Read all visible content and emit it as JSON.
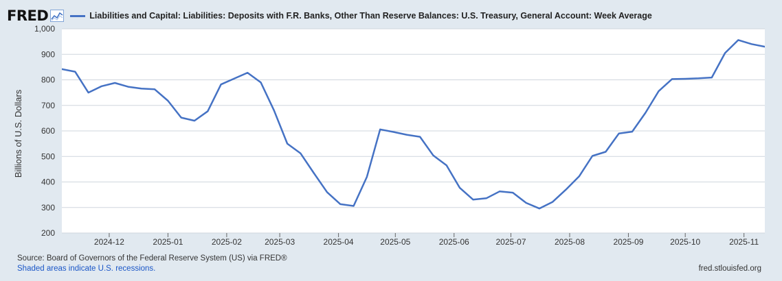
{
  "header": {
    "logo_text": "FRED",
    "logo_icon": "line-graph-icon"
  },
  "chart_data": {
    "type": "line",
    "title": "",
    "xlabel": "",
    "ylabel": "Billions of U.S. Dollars",
    "ylim": [
      200,
      1000
    ],
    "xlim": [
      "2024-11-06",
      "2025-11-12"
    ],
    "yticks": [
      200,
      300,
      400,
      500,
      600,
      700,
      800,
      900,
      1000
    ],
    "ytick_labels": [
      "200",
      "300",
      "400",
      "500",
      "600",
      "700",
      "800",
      "900",
      "1,000"
    ],
    "xticks": [
      "2024-12-01",
      "2025-01-01",
      "2025-02-01",
      "2025-03-01",
      "2025-04-01",
      "2025-05-01",
      "2025-06-01",
      "2025-07-01",
      "2025-08-01",
      "2025-09-01",
      "2025-10-01",
      "2025-11-01"
    ],
    "xtick_labels": [
      "2024-12",
      "2025-01",
      "2025-02",
      "2025-03",
      "2025-04",
      "2025-05",
      "2025-06",
      "2025-07",
      "2025-08",
      "2025-09",
      "2025-10",
      "2025-11"
    ],
    "grid": "horizontal",
    "legend_position": "top-left",
    "series": [
      {
        "name": "Liabilities and Capital: Liabilities: Deposits with F.R. Banks, Other Than Reserve Balances: U.S. Treasury, General Account: Week Average",
        "color": "#4572c4",
        "x": [
          "2024-11-06",
          "2024-11-13",
          "2024-11-20",
          "2024-11-27",
          "2024-12-04",
          "2024-12-11",
          "2024-12-18",
          "2024-12-25",
          "2025-01-01",
          "2025-01-08",
          "2025-01-15",
          "2025-01-22",
          "2025-01-29",
          "2025-02-05",
          "2025-02-12",
          "2025-02-19",
          "2025-02-26",
          "2025-03-05",
          "2025-03-12",
          "2025-03-19",
          "2025-03-26",
          "2025-04-02",
          "2025-04-09",
          "2025-04-16",
          "2025-04-23",
          "2025-04-30",
          "2025-05-07",
          "2025-05-14",
          "2025-05-21",
          "2025-05-28",
          "2025-06-04",
          "2025-06-11",
          "2025-06-18",
          "2025-06-25",
          "2025-07-02",
          "2025-07-09",
          "2025-07-16",
          "2025-07-23",
          "2025-07-30",
          "2025-08-06",
          "2025-08-13",
          "2025-08-20",
          "2025-08-27",
          "2025-09-03",
          "2025-09-10",
          "2025-09-17",
          "2025-09-24",
          "2025-10-01",
          "2025-10-08",
          "2025-10-15",
          "2025-10-22",
          "2025-10-29",
          "2025-11-05",
          "2025-11-12"
        ],
        "values": [
          842,
          832,
          750,
          775,
          788,
          773,
          766,
          763,
          718,
          652,
          640,
          677,
          782,
          805,
          828,
          790,
          680,
          550,
          512,
          435,
          360,
          313,
          306,
          420,
          606,
          596,
          585,
          577,
          504,
          465,
          377,
          331,
          336,
          363,
          358,
          318,
          296,
          322,
          370,
          422,
          502,
          518,
          590,
          597,
          671,
          756,
          803,
          804,
          806,
          809,
          905,
          956,
          940,
          930
        ]
      }
    ]
  },
  "footer": {
    "source": "Source: Board of Governors of the Federal Reserve System (US) via FRED®",
    "recession_note": "Shaded areas indicate U.S. recessions.",
    "site": "fred.stlouisfed.org"
  }
}
